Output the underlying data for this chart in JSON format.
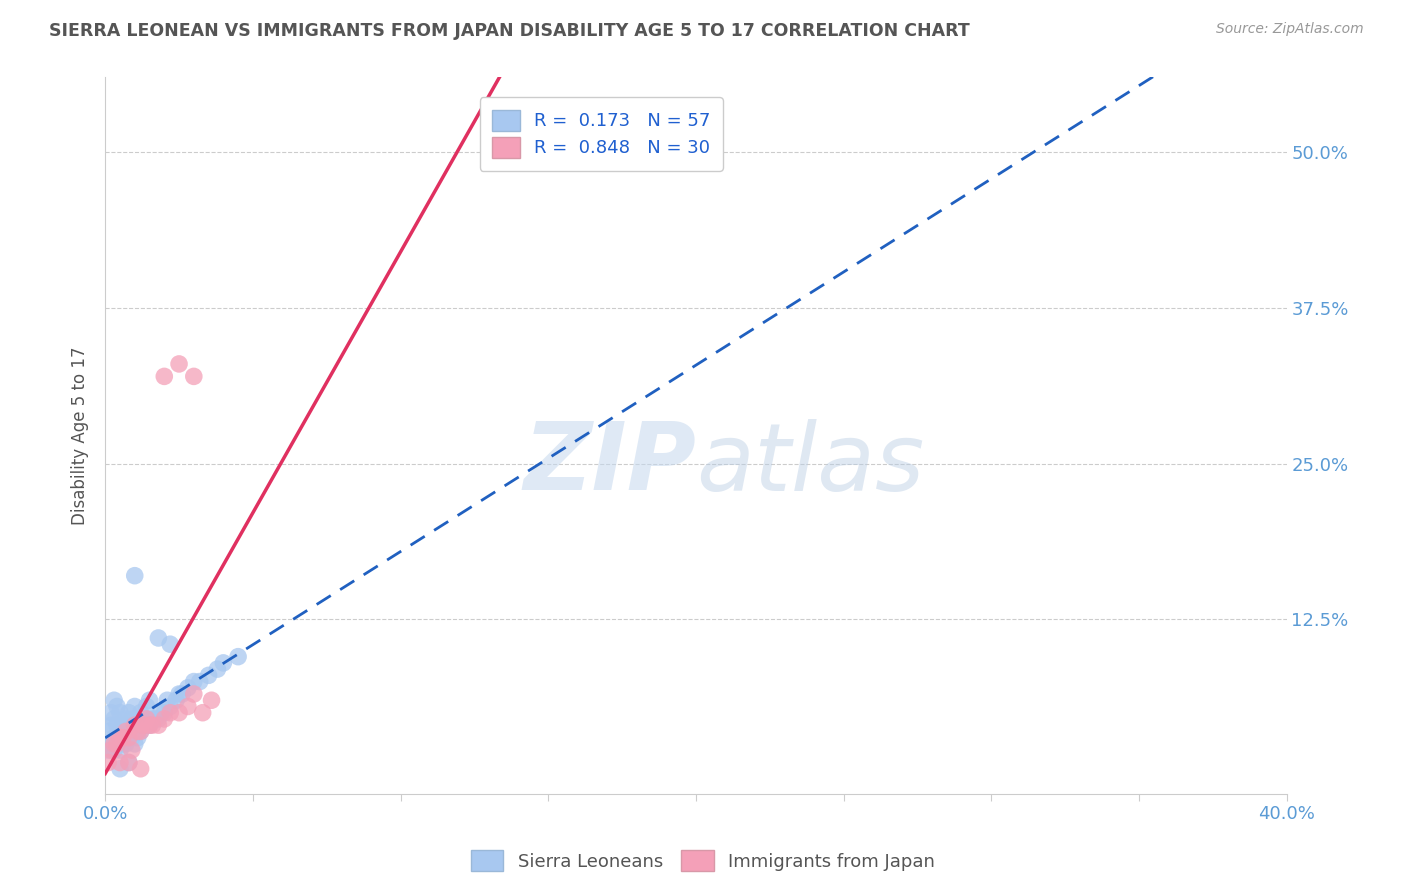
{
  "title": "SIERRA LEONEAN VS IMMIGRANTS FROM JAPAN DISABILITY AGE 5 TO 17 CORRELATION CHART",
  "source_text": "Source: ZipAtlas.com",
  "ylabel": "Disability Age 5 to 17",
  "xlim": [
    0.0,
    0.4
  ],
  "ylim": [
    -0.015,
    0.56
  ],
  "xticks": [
    0.0,
    0.05,
    0.1,
    0.15,
    0.2,
    0.25,
    0.3,
    0.35,
    0.4
  ],
  "xticklabels": [
    "0.0%",
    "",
    "",
    "",
    "",
    "",
    "",
    "",
    "40.0%"
  ],
  "ytick_positions": [
    0.0,
    0.125,
    0.25,
    0.375,
    0.5
  ],
  "yticklabels_right": [
    "",
    "12.5%",
    "25.0%",
    "37.5%",
    "50.0%"
  ],
  "watermark_zip": "ZIP",
  "watermark_atlas": "atlas",
  "legend_entries": [
    {
      "label": "R =  0.173   N = 57",
      "color": "#a8c8f0"
    },
    {
      "label": "R =  0.848   N = 30",
      "color": "#f4a0b8"
    }
  ],
  "sierra_leoneans": {
    "x": [
      0.001,
      0.001,
      0.002,
      0.002,
      0.002,
      0.003,
      0.003,
      0.003,
      0.003,
      0.004,
      0.004,
      0.004,
      0.005,
      0.005,
      0.005,
      0.006,
      0.006,
      0.007,
      0.007,
      0.008,
      0.008,
      0.009,
      0.009,
      0.01,
      0.01,
      0.01,
      0.011,
      0.011,
      0.012,
      0.012,
      0.013,
      0.014,
      0.014,
      0.015,
      0.015,
      0.016,
      0.017,
      0.018,
      0.019,
      0.02,
      0.021,
      0.022,
      0.024,
      0.025,
      0.026,
      0.028,
      0.03,
      0.032,
      0.035,
      0.038,
      0.04,
      0.045,
      0.01,
      0.018,
      0.022,
      0.005,
      0.008
    ],
    "y": [
      0.02,
      0.035,
      0.025,
      0.04,
      0.05,
      0.02,
      0.03,
      0.045,
      0.06,
      0.025,
      0.04,
      0.055,
      0.02,
      0.035,
      0.05,
      0.025,
      0.04,
      0.025,
      0.045,
      0.03,
      0.05,
      0.03,
      0.045,
      0.025,
      0.04,
      0.055,
      0.03,
      0.045,
      0.035,
      0.05,
      0.04,
      0.04,
      0.055,
      0.04,
      0.06,
      0.045,
      0.045,
      0.045,
      0.05,
      0.05,
      0.06,
      0.055,
      0.06,
      0.065,
      0.065,
      0.07,
      0.075,
      0.075,
      0.08,
      0.085,
      0.09,
      0.095,
      0.16,
      0.11,
      0.105,
      0.005,
      0.01
    ],
    "color": "#a8c8f0",
    "trend_color": "#2060c0",
    "trend_style": "dashed"
  },
  "japan_immigrants": {
    "x": [
      0.001,
      0.002,
      0.003,
      0.004,
      0.005,
      0.006,
      0.007,
      0.008,
      0.009,
      0.01,
      0.011,
      0.012,
      0.013,
      0.014,
      0.015,
      0.016,
      0.018,
      0.02,
      0.022,
      0.025,
      0.028,
      0.03,
      0.033,
      0.036,
      0.005,
      0.008,
      0.012,
      0.02,
      0.025,
      0.03
    ],
    "y": [
      0.01,
      0.02,
      0.025,
      0.025,
      0.03,
      0.03,
      0.035,
      0.03,
      0.02,
      0.04,
      0.035,
      0.035,
      0.04,
      0.045,
      0.04,
      0.04,
      0.04,
      0.045,
      0.05,
      0.05,
      0.055,
      0.065,
      0.05,
      0.06,
      0.01,
      0.01,
      0.005,
      0.32,
      0.33,
      0.32
    ],
    "color": "#f4a0b8",
    "trend_color": "#e03060",
    "trend_style": "solid"
  },
  "background_color": "#ffffff",
  "grid_color": "#cccccc",
  "title_color": "#555555",
  "axis_label_color": "#555555",
  "tick_label_color": "#5b9bd5"
}
